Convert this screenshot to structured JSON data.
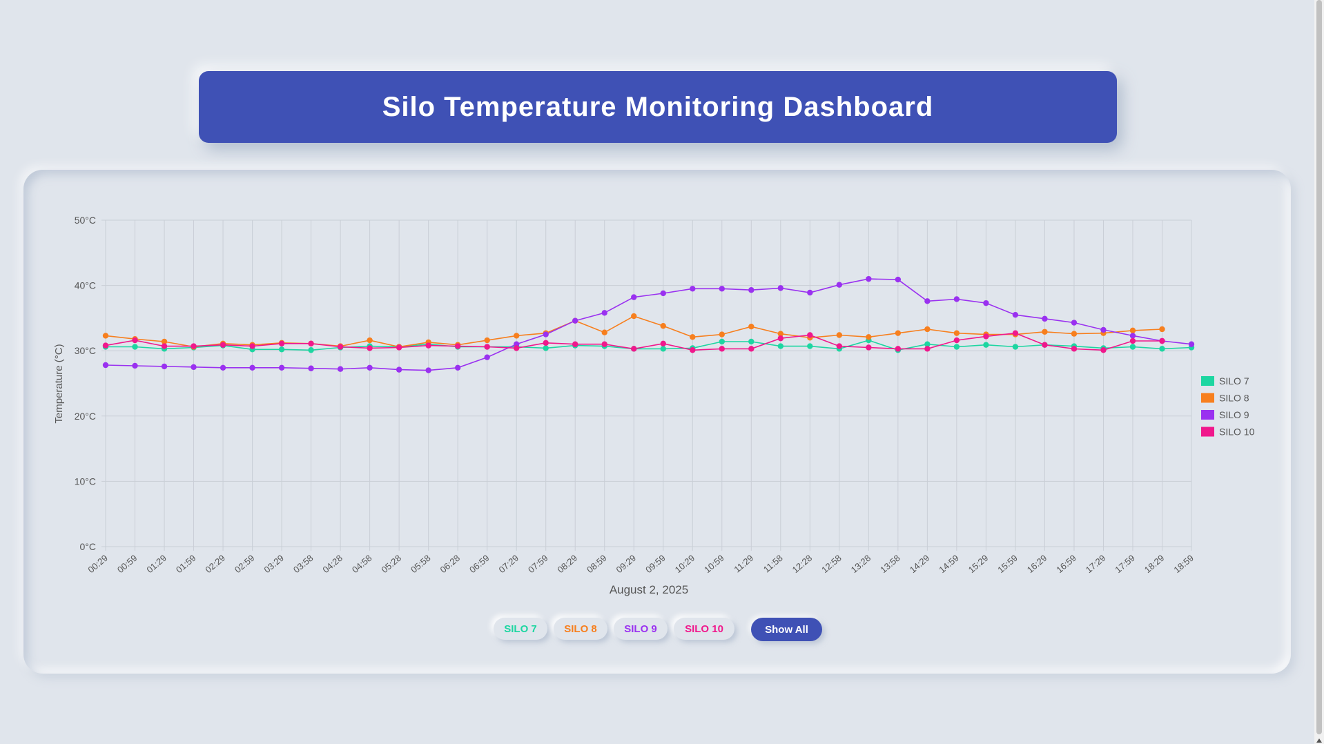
{
  "header": {
    "title": "Silo Temperature Monitoring Dashboard"
  },
  "colors": {
    "silo7": "#1dd6a1",
    "silo8": "#f77f1e",
    "silo9": "#9a31f0",
    "silo10": "#f0188c",
    "accent": "#3f51b5"
  },
  "filters": {
    "buttons": [
      {
        "label": "SILO 7",
        "color": "#1dd6a1"
      },
      {
        "label": "SILO 8",
        "color": "#f77f1e"
      },
      {
        "label": "SILO 9",
        "color": "#9a31f0"
      },
      {
        "label": "SILO 10",
        "color": "#f0188c"
      }
    ],
    "show_all_label": "Show All"
  },
  "chart_data": {
    "type": "line",
    "xlabel": "August 2, 2025",
    "ylabel": "Temperature (°C)",
    "ylim": [
      0,
      50
    ],
    "y_ticks": [
      "0°C",
      "10°C",
      "20°C",
      "30°C",
      "40°C",
      "50°C"
    ],
    "grid": true,
    "legend_position": "right",
    "categories": [
      "00:29",
      "00:59",
      "01:29",
      "01:59",
      "02:29",
      "02:59",
      "03:29",
      "03:58",
      "04:28",
      "04:58",
      "05:28",
      "05:58",
      "06:28",
      "06:59",
      "07:29",
      "07:59",
      "08:29",
      "08:59",
      "09:29",
      "09:59",
      "10:29",
      "10:59",
      "11:29",
      "11:58",
      "12:28",
      "12:58",
      "13:28",
      "13:58",
      "14:29",
      "14:59",
      "15:29",
      "15:59",
      "16:29",
      "16:59",
      "17:29",
      "17:59",
      "18:29",
      "18:59"
    ],
    "series": [
      {
        "name": "SILO 7",
        "color": "#1dd6a1",
        "values": [
          30.6,
          30.6,
          30.3,
          30.5,
          30.8,
          30.2,
          30.2,
          30.1,
          30.5,
          30.7,
          30.6,
          31.0,
          30.6,
          30.6,
          30.6,
          30.4,
          30.8,
          30.7,
          30.3,
          30.3,
          30.4,
          31.4,
          31.4,
          30.7,
          30.7,
          30.3,
          31.6,
          30.1,
          31.0,
          30.6,
          30.9,
          30.6,
          30.9,
          30.7,
          30.4,
          30.6,
          30.3,
          30.5
        ]
      },
      {
        "name": "SILO 8",
        "color": "#f77f1e",
        "values": [
          32.3,
          31.8,
          31.4,
          30.6,
          31.1,
          30.9,
          31.2,
          31.1,
          30.7,
          31.6,
          30.6,
          31.3,
          30.9,
          31.6,
          32.3,
          32.7,
          34.6,
          32.8,
          35.3,
          33.8,
          32.1,
          32.5,
          33.7,
          32.6,
          32.0,
          32.4,
          32.1,
          32.7,
          33.3,
          32.7,
          32.5,
          32.5,
          32.9,
          32.6,
          32.7,
          33.1,
          33.3,
          null
        ]
      },
      {
        "name": "SILO 9",
        "color": "#9a31f0",
        "values": [
          27.8,
          27.7,
          27.6,
          27.5,
          27.4,
          27.4,
          27.4,
          27.3,
          27.2,
          27.4,
          27.1,
          27.0,
          27.4,
          29.0,
          31.0,
          32.5,
          34.6,
          35.8,
          38.2,
          38.8,
          39.5,
          39.5,
          39.3,
          39.6,
          38.9,
          40.1,
          41.0,
          40.9,
          37.6,
          37.9,
          37.3,
          35.5,
          34.9,
          34.3,
          33.2,
          32.3,
          31.5,
          31.0
        ]
      },
      {
        "name": "SILO 10",
        "color": "#f0188c",
        "values": [
          30.8,
          31.6,
          30.7,
          30.7,
          30.9,
          30.7,
          31.1,
          31.1,
          30.6,
          30.4,
          30.5,
          30.8,
          30.7,
          30.6,
          30.4,
          31.2,
          31.0,
          31.0,
          30.3,
          31.1,
          30.1,
          30.3,
          30.3,
          31.9,
          32.4,
          30.7,
          30.5,
          30.3,
          30.3,
          31.6,
          32.2,
          32.7,
          30.9,
          30.3,
          30.1,
          31.5,
          31.5,
          null
        ]
      }
    ]
  }
}
